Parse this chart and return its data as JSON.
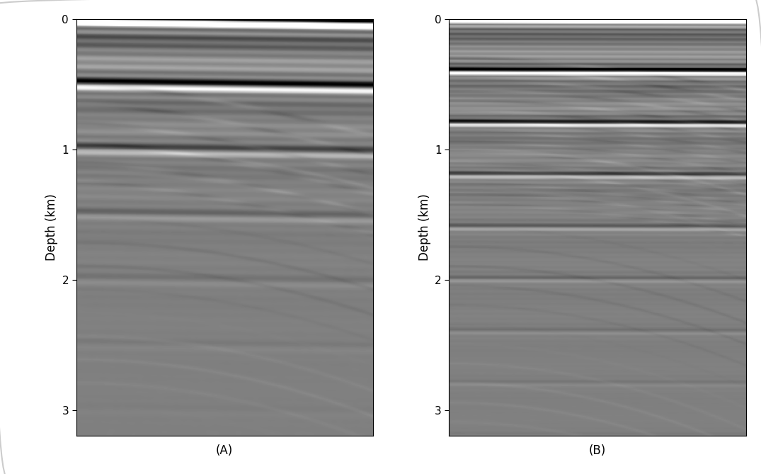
{
  "fig_width": 10.75,
  "fig_height": 6.69,
  "dpi": 100,
  "background_color": "#ffffff",
  "border_color": "#cccccc",
  "panel_A_label": "(A)",
  "panel_B_label": "(B)",
  "ylabel": "Depth (km)",
  "yticks": [
    0,
    1,
    2,
    3
  ],
  "ylim": [
    0,
    3.2
  ],
  "depth_km": 3.2,
  "num_traces": 80,
  "nx": 200,
  "nz": 320,
  "seed": 42
}
